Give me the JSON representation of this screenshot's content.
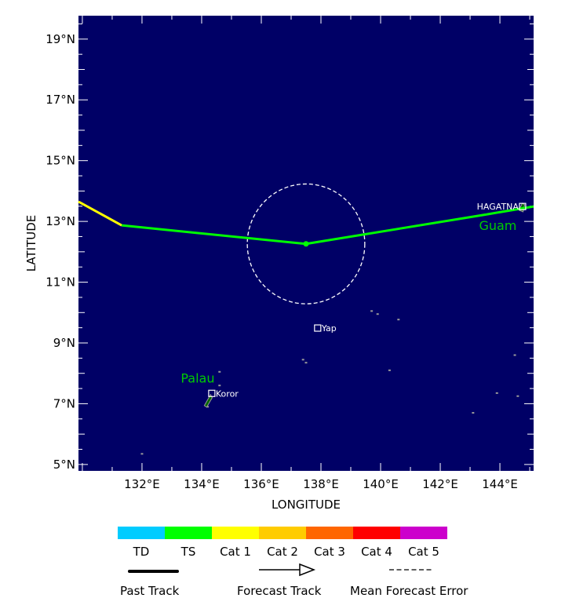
{
  "map": {
    "extent": {
      "lon_min": 129.87,
      "lon_max": 145.13,
      "lat_min": 4.79,
      "lat_max": 19.77
    },
    "ocean_color": "#000066",
    "xlabel": "LONGITUDE",
    "ylabel": "LATITUDE",
    "lon_ticks": [
      {
        "v": 132,
        "label": "132°E"
      },
      {
        "v": 134,
        "label": "134°E"
      },
      {
        "v": 136,
        "label": "136°E"
      },
      {
        "v": 138,
        "label": "138°E"
      },
      {
        "v": 140,
        "label": "140°E"
      },
      {
        "v": 142,
        "label": "142°E"
      },
      {
        "v": 144,
        "label": "144°E"
      }
    ],
    "lat_ticks": [
      {
        "v": 5,
        "label": "5°N"
      },
      {
        "v": 7,
        "label": "7°N"
      },
      {
        "v": 9,
        "label": "9°N"
      },
      {
        "v": 11,
        "label": "11°N"
      },
      {
        "v": 13,
        "label": "13°N"
      },
      {
        "v": 15,
        "label": "15°N"
      },
      {
        "v": 17,
        "label": "17°N"
      },
      {
        "v": 19,
        "label": "19°N"
      }
    ],
    "track": [
      {
        "lon": 129.87,
        "lat": 13.65,
        "category": "Cat 1"
      },
      {
        "lon": 131.32,
        "lat": 12.87,
        "category": "TS"
      },
      {
        "lon": 137.5,
        "lat": 12.26,
        "category": "TS"
      },
      {
        "lon": 143.55,
        "lat": 13.23,
        "category": "TS"
      },
      {
        "lon": 145.13,
        "lat": 13.49,
        "category": "TS"
      }
    ],
    "current_position": {
      "lon": 137.5,
      "lat": 12.26
    },
    "error_radius_deg": 1.97,
    "places": [
      {
        "name": "HAGATNA",
        "lon": 144.76,
        "lat": 13.49,
        "side": "left"
      },
      {
        "name": "Yap",
        "lon": 137.89,
        "lat": 9.49,
        "side": "right"
      },
      {
        "name": "Koror",
        "lon": 134.34,
        "lat": 7.34,
        "side": "right"
      }
    ],
    "regions": [
      {
        "name": "Guam",
        "lon": 143.3,
        "lat": 12.87
      },
      {
        "name": "Palau",
        "lon": 133.3,
        "lat": 7.85
      }
    ]
  },
  "legend": {
    "categories": [
      {
        "label": "TD",
        "color": "#00ccff"
      },
      {
        "label": "TS",
        "color": "#00ff00"
      },
      {
        "label": "Cat 1",
        "color": "#ffff00"
      },
      {
        "label": "Cat 2",
        "color": "#ffcc00"
      },
      {
        "label": "Cat 3",
        "color": "#ff6600"
      },
      {
        "label": "Cat 4",
        "color": "#ff0000"
      },
      {
        "label": "Cat 5",
        "color": "#cc00cc"
      }
    ],
    "past_track": "Past Track",
    "forecast_track": "Forecast Track",
    "mean_error": "Mean Forecast Error"
  }
}
